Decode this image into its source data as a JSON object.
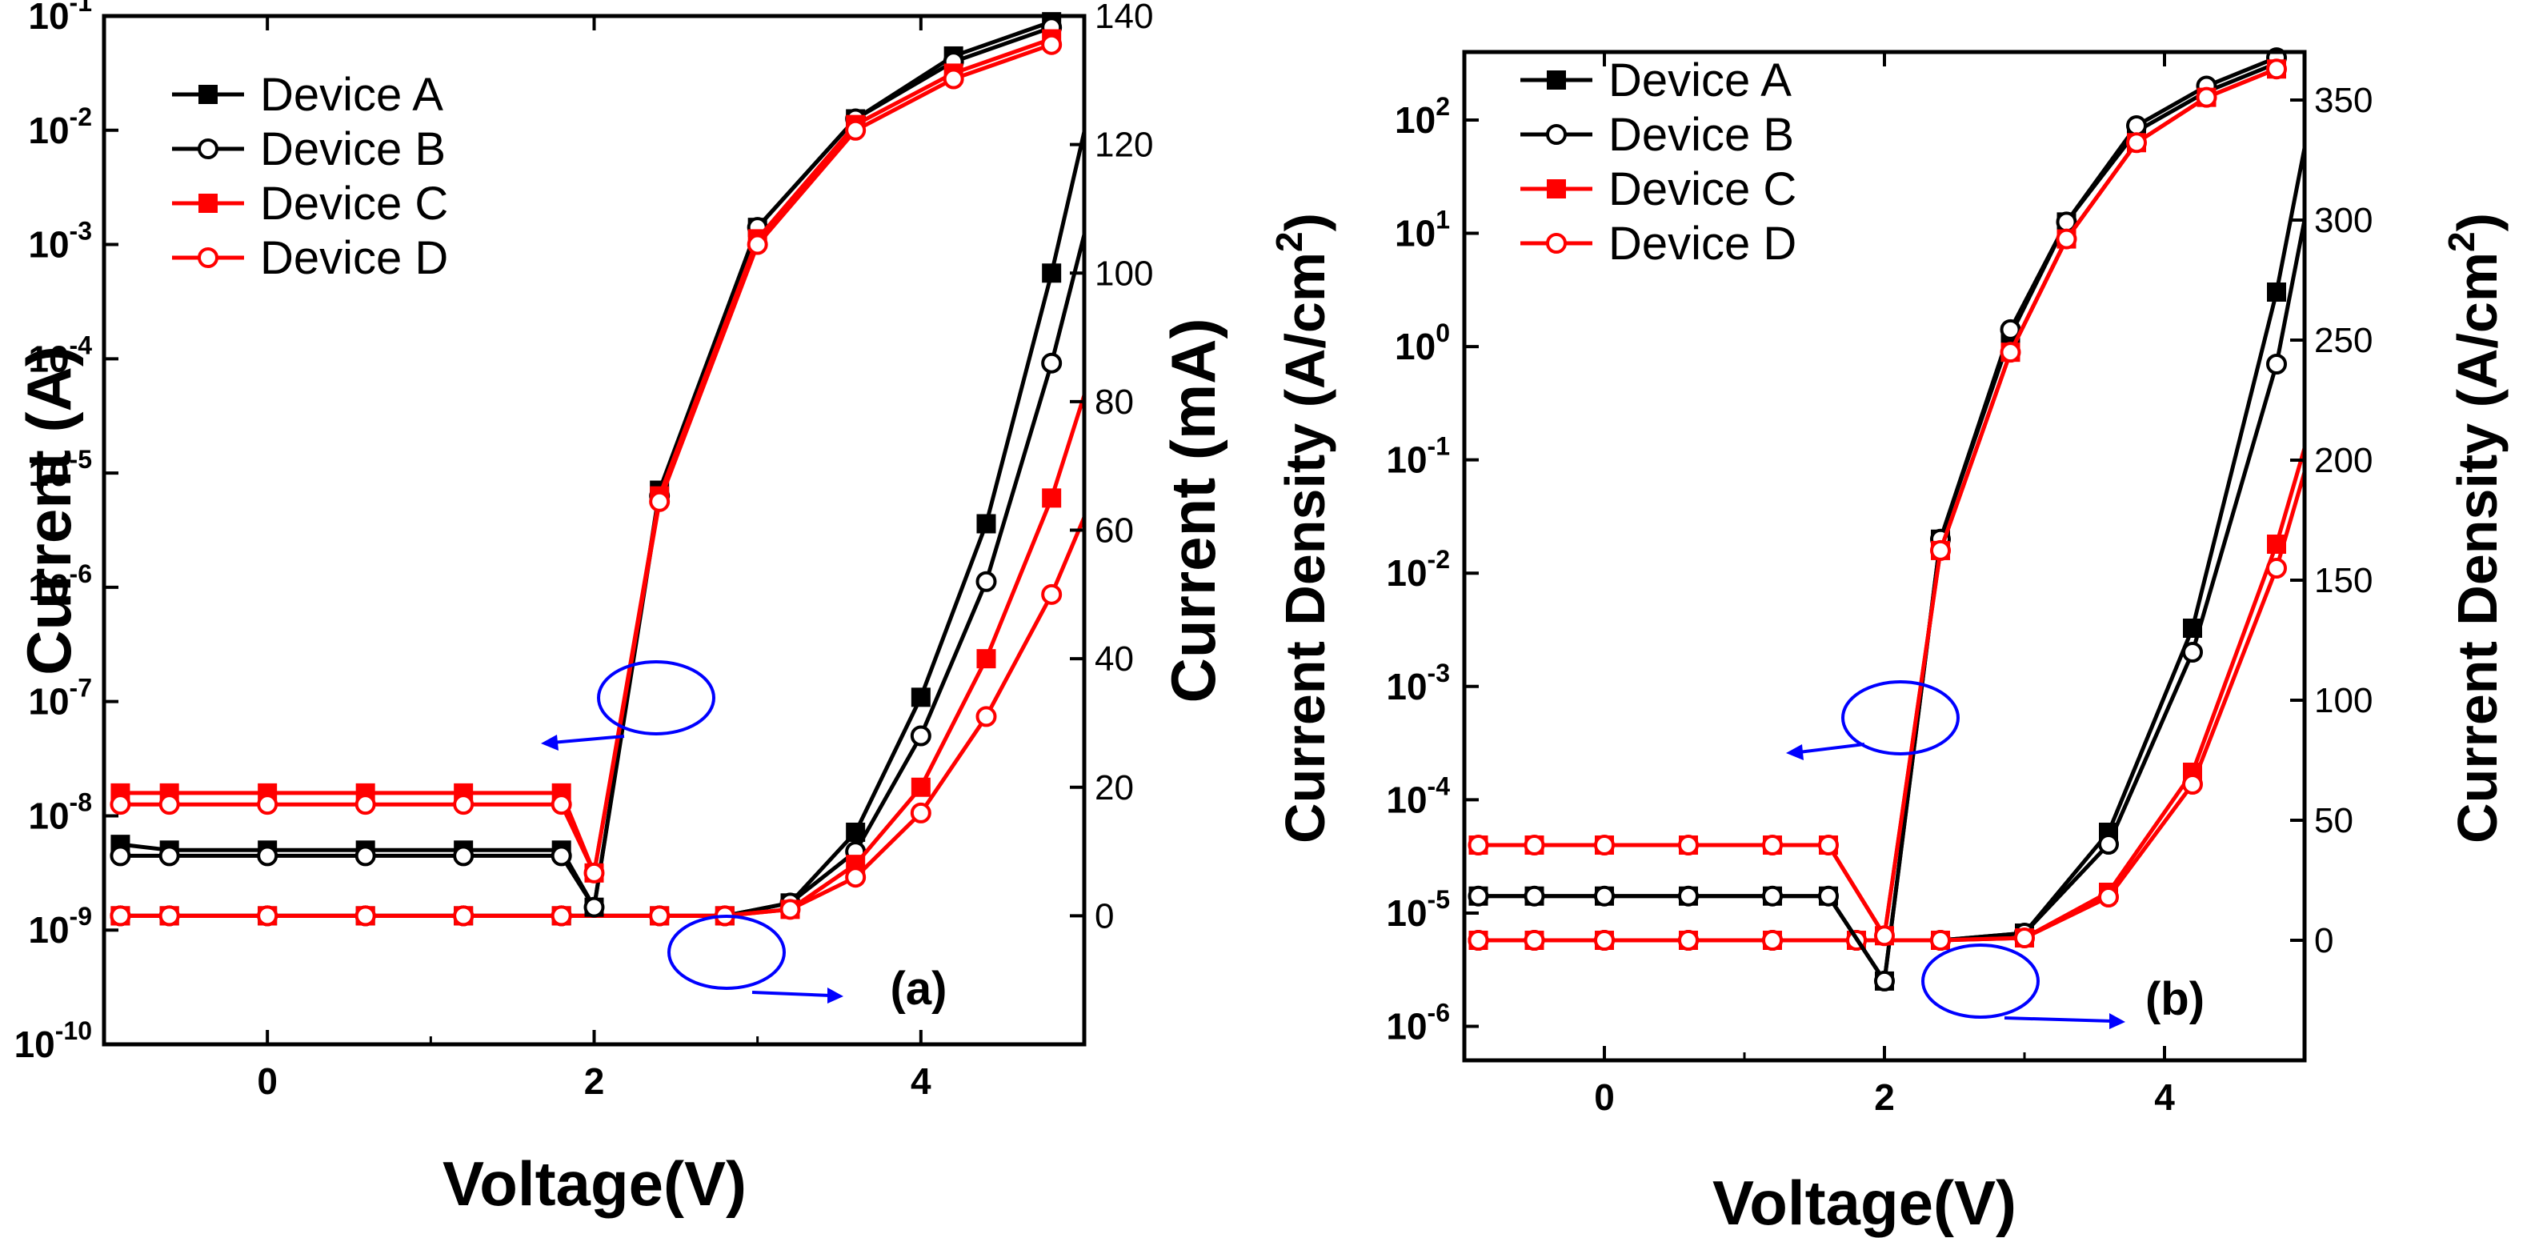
{
  "chart_data": [
    {
      "panel_label": "(a)",
      "type": "line",
      "xlabel": "Voltage(V)",
      "xlim": [
        -1,
        5
      ],
      "xticks": [
        "0",
        "2",
        "4"
      ],
      "ylabel_left": "Current (A)",
      "ylabel_right": "Current (mA)",
      "yscale_left": "log",
      "ylim_left_exp": [
        -10,
        -1
      ],
      "yticks_left": [
        {
          "base": "10",
          "exp": "-1"
        },
        {
          "base": "10",
          "exp": "-2"
        },
        {
          "base": "10",
          "exp": "-3"
        },
        {
          "base": "10",
          "exp": "-4"
        },
        {
          "base": "10",
          "exp": "-5"
        },
        {
          "base": "10",
          "exp": "-6"
        },
        {
          "base": "10",
          "exp": "-7"
        },
        {
          "base": "10",
          "exp": "-8"
        },
        {
          "base": "10",
          "exp": "-9"
        },
        {
          "base": "10",
          "exp": "-10"
        }
      ],
      "ylim_right": [
        -20,
        140
      ],
      "yticks_right": [
        "0",
        "20",
        "40",
        "60",
        "80",
        "100",
        "120",
        "140"
      ],
      "legend": [
        "Device A",
        "Device B",
        "Device C",
        "Device D"
      ],
      "series_log": [
        {
          "name": "Device A",
          "color": "#000000",
          "marker": "square-filled",
          "x": [
            -0.9,
            -0.6,
            0,
            0.6,
            1.2,
            1.8,
            2.0,
            2.4,
            3.0,
            3.6,
            4.2,
            4.8
          ],
          "log10_y": [
            -8.25,
            -8.3,
            -8.3,
            -8.3,
            -8.3,
            -8.3,
            -8.8,
            -5.15,
            -2.85,
            -1.9,
            -1.35,
            -1.05
          ]
        },
        {
          "name": "Device B",
          "color": "#000000",
          "marker": "circle-open",
          "x": [
            -0.9,
            -0.6,
            0,
            0.6,
            1.2,
            1.8,
            2.0,
            2.4,
            3.0,
            3.6,
            4.2,
            4.8
          ],
          "log10_y": [
            -8.35,
            -8.35,
            -8.35,
            -8.35,
            -8.35,
            -8.35,
            -8.8,
            -5.2,
            -2.85,
            -1.9,
            -1.4,
            -1.1
          ]
        },
        {
          "name": "Device C",
          "color": "#ff0000",
          "marker": "square-filled",
          "x": [
            -0.9,
            -0.6,
            0,
            0.6,
            1.2,
            1.8,
            2.0,
            2.4,
            3.0,
            3.6,
            4.2,
            4.8
          ],
          "log10_y": [
            -7.8,
            -7.8,
            -7.8,
            -7.8,
            -7.8,
            -7.8,
            -8.5,
            -5.2,
            -2.95,
            -1.95,
            -1.5,
            -1.2
          ]
        },
        {
          "name": "Device D",
          "color": "#ff0000",
          "marker": "circle-open",
          "x": [
            -0.9,
            -0.6,
            0,
            0.6,
            1.2,
            1.8,
            2.0,
            2.4,
            3.0,
            3.6,
            4.2,
            4.8
          ],
          "log10_y": [
            -7.9,
            -7.9,
            -7.9,
            -7.9,
            -7.9,
            -7.9,
            -8.5,
            -5.25,
            -3.0,
            -2.0,
            -1.55,
            -1.25
          ]
        }
      ],
      "series_linear": [
        {
          "name": "Device A",
          "color": "#000000",
          "marker": "square-filled",
          "x": [
            -0.9,
            -0.6,
            0,
            0.6,
            1.2,
            1.8,
            2.4,
            2.8,
            3.2,
            3.6,
            4.0,
            4.4,
            4.8,
            5.0
          ],
          "y_mA": [
            0,
            0,
            0,
            0,
            0,
            0,
            0,
            0,
            2,
            13,
            34,
            61,
            100,
            122
          ]
        },
        {
          "name": "Device B",
          "color": "#000000",
          "marker": "circle-open",
          "x": [
            -0.9,
            -0.6,
            0,
            0.6,
            1.2,
            1.8,
            2.4,
            2.8,
            3.2,
            3.6,
            4.0,
            4.4,
            4.8,
            5.0
          ],
          "y_mA": [
            0,
            0,
            0,
            0,
            0,
            0,
            0,
            0,
            2,
            10,
            28,
            52,
            86,
            106
          ]
        },
        {
          "name": "Device C",
          "color": "#ff0000",
          "marker": "square-filled",
          "x": [
            -0.9,
            -0.6,
            0,
            0.6,
            1.2,
            1.8,
            2.4,
            2.8,
            3.2,
            3.6,
            4.0,
            4.4,
            4.8,
            5.0
          ],
          "y_mA": [
            0,
            0,
            0,
            0,
            0,
            0,
            0,
            0,
            1,
            8,
            20,
            40,
            65,
            81
          ]
        },
        {
          "name": "Device D",
          "color": "#ff0000",
          "marker": "circle-open",
          "x": [
            -0.9,
            -0.6,
            0,
            0.6,
            1.2,
            1.8,
            2.4,
            2.8,
            3.2,
            3.6,
            4.0,
            4.4,
            4.8,
            5.0
          ],
          "y_mA": [
            0,
            0,
            0,
            0,
            0,
            0,
            0,
            0,
            1,
            6,
            16,
            31,
            50,
            62
          ]
        }
      ]
    },
    {
      "panel_label": "(b)",
      "type": "line",
      "xlabel": "Voltage(V)",
      "xlim": [
        -1,
        5
      ],
      "xticks": [
        "0",
        "2",
        "4"
      ],
      "ylabel_left": "Current Density (A/cm",
      "ylabel_left_sup": "2",
      "ylabel_left_close": ")",
      "ylabel_right": "Current Density (A/cm",
      "ylabel_right_sup": "2",
      "ylabel_right_close": ")",
      "yscale_left": "log",
      "ylim_left_exp": [
        -6.3,
        2.6
      ],
      "yticks_left": [
        {
          "base": "10",
          "exp": "2"
        },
        {
          "base": "10",
          "exp": "1"
        },
        {
          "base": "10",
          "exp": "0"
        },
        {
          "base": "10",
          "exp": "-1"
        },
        {
          "base": "10",
          "exp": "-2"
        },
        {
          "base": "10",
          "exp": "-3"
        },
        {
          "base": "10",
          "exp": "-4"
        },
        {
          "base": "10",
          "exp": "-5"
        },
        {
          "base": "10",
          "exp": "-6"
        }
      ],
      "ylim_right": [
        -50,
        370
      ],
      "yticks_right": [
        "0",
        "50",
        "100",
        "150",
        "200",
        "250",
        "300",
        "350"
      ],
      "legend": [
        "Device A",
        "Device B",
        "Device C",
        "Device D"
      ],
      "series_log": [
        {
          "name": "Device A",
          "color": "#000000",
          "marker": "square-filled",
          "x": [
            -0.9,
            -0.5,
            0,
            0.6,
            1.2,
            1.6,
            2.0,
            2.4,
            2.9,
            3.3,
            3.8,
            4.3,
            4.8
          ],
          "log10_y": [
            -4.85,
            -4.85,
            -4.85,
            -4.85,
            -4.85,
            -4.85,
            -5.6,
            -1.7,
            0.1,
            1.1,
            1.9,
            2.25,
            2.5
          ]
        },
        {
          "name": "Device B",
          "color": "#000000",
          "marker": "circle-open",
          "x": [
            -0.9,
            -0.5,
            0,
            0.6,
            1.2,
            1.6,
            2.0,
            2.4,
            2.9,
            3.3,
            3.8,
            4.3,
            4.8
          ],
          "log10_y": [
            -4.85,
            -4.85,
            -4.85,
            -4.85,
            -4.85,
            -4.85,
            -5.6,
            -1.7,
            0.15,
            1.1,
            1.95,
            2.3,
            2.55
          ]
        },
        {
          "name": "Device C",
          "color": "#ff0000",
          "marker": "square-filled",
          "x": [
            -0.9,
            -0.5,
            0,
            0.6,
            1.2,
            1.6,
            2.0,
            2.4,
            2.9,
            3.3,
            3.8,
            4.3,
            4.8
          ],
          "log10_y": [
            -4.4,
            -4.4,
            -4.4,
            -4.4,
            -4.4,
            -4.4,
            -5.2,
            -1.8,
            -0.05,
            0.95,
            1.8,
            2.2,
            2.45
          ]
        },
        {
          "name": "Device D",
          "color": "#ff0000",
          "marker": "circle-open",
          "x": [
            -0.9,
            -0.5,
            0,
            0.6,
            1.2,
            1.6,
            2.0,
            2.4,
            2.9,
            3.3,
            3.8,
            4.3,
            4.8
          ],
          "log10_y": [
            -4.4,
            -4.4,
            -4.4,
            -4.4,
            -4.4,
            -4.4,
            -5.2,
            -1.8,
            -0.05,
            0.95,
            1.8,
            2.2,
            2.45
          ]
        }
      ],
      "series_linear": [
        {
          "name": "Device A",
          "color": "#000000",
          "marker": "square-filled",
          "x": [
            -0.9,
            -0.5,
            0,
            0.6,
            1.2,
            1.8,
            2.4,
            3.0,
            3.6,
            4.2,
            4.8,
            5.0
          ],
          "y": [
            0,
            0,
            0,
            0,
            0,
            0,
            0,
            3,
            45,
            130,
            270,
            330
          ]
        },
        {
          "name": "Device B",
          "color": "#000000",
          "marker": "circle-open",
          "x": [
            -0.9,
            -0.5,
            0,
            0.6,
            1.2,
            1.8,
            2.4,
            3.0,
            3.6,
            4.2,
            4.8,
            5.0
          ],
          "y": [
            0,
            0,
            0,
            0,
            0,
            0,
            0,
            3,
            40,
            120,
            240,
            300
          ]
        },
        {
          "name": "Device C",
          "color": "#ff0000",
          "marker": "square-filled",
          "x": [
            -0.9,
            -0.5,
            0,
            0.6,
            1.2,
            1.8,
            2.4,
            3.0,
            3.6,
            4.2,
            4.8,
            5.0
          ],
          "y": [
            0,
            0,
            0,
            0,
            0,
            0,
            0,
            1,
            20,
            70,
            165,
            205
          ]
        },
        {
          "name": "Device D",
          "color": "#ff0000",
          "marker": "circle-open",
          "x": [
            -0.9,
            -0.5,
            0,
            0.6,
            1.2,
            1.8,
            2.4,
            3.0,
            3.6,
            4.2,
            4.8,
            5.0
          ],
          "y": [
            0,
            0,
            0,
            0,
            0,
            0,
            0,
            1,
            18,
            65,
            155,
            195
          ]
        }
      ]
    }
  ]
}
